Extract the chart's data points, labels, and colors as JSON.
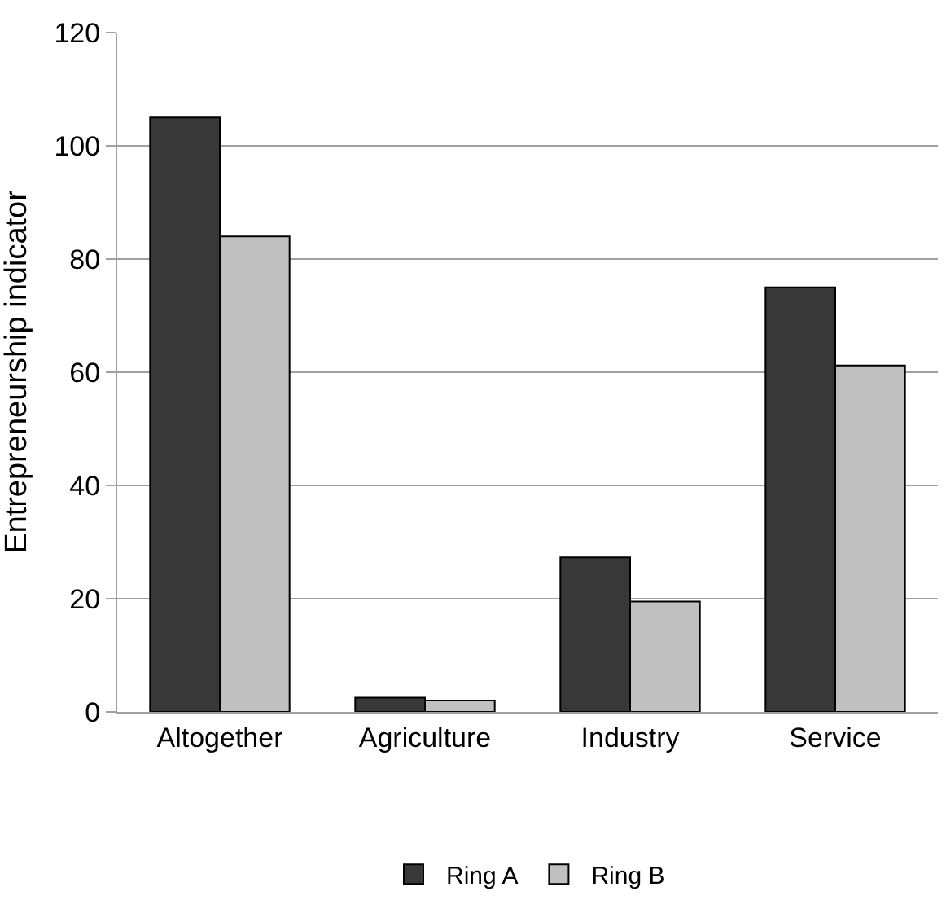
{
  "chart_data": {
    "type": "bar",
    "ylabel": "Entrepreneurship indicator",
    "categories": [
      "Altogether",
      "Agriculture",
      "Industry",
      "Service"
    ],
    "series": [
      {
        "name": "Ring A",
        "color": "#383838",
        "values": [
          105,
          2.5,
          27.3,
          75
        ]
      },
      {
        "name": "Ring B",
        "color": "#c0c0c0",
        "values": [
          84,
          2,
          19.5,
          61.2
        ]
      }
    ],
    "ylim": [
      0,
      120
    ],
    "yticks": [
      0,
      20,
      40,
      60,
      80,
      100,
      120
    ],
    "grid": "y",
    "legend": "bottom"
  }
}
